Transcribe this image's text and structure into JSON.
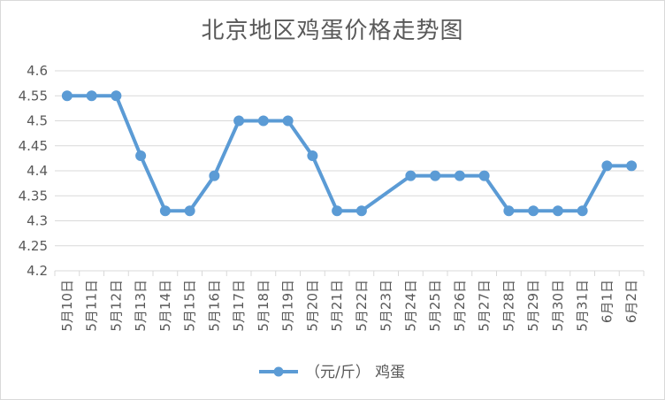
{
  "chart_data": {
    "type": "line",
    "title": "北京地区鸡蛋价格走势图",
    "categories": [
      "5月10日",
      "5月11日",
      "5月12日",
      "5月13日",
      "5月14日",
      "5月15日",
      "5月16日",
      "5月17日",
      "5月18日",
      "5月19日",
      "5月20日",
      "5月21日",
      "5月22日",
      "5月23日",
      "5月24日",
      "5月25日",
      "5月26日",
      "5月27日",
      "5月28日",
      "5月29日",
      "5月30日",
      "5月31日",
      "6月1日",
      "6月2日"
    ],
    "series": [
      {
        "name": "（元/斤） 鸡蛋",
        "color": "#5b9bd5",
        "values": [
          4.55,
          4.55,
          4.55,
          4.43,
          4.32,
          4.32,
          4.39,
          4.5,
          4.5,
          4.5,
          4.43,
          4.32,
          4.32,
          null,
          4.39,
          4.39,
          4.39,
          4.39,
          4.32,
          4.32,
          4.32,
          4.32,
          4.41,
          4.41
        ]
      }
    ],
    "yticks": [
      "4.2",
      "4.25",
      "4.3",
      "4.35",
      "4.4",
      "4.45",
      "4.5",
      "4.55",
      "4.6"
    ],
    "ylim": [
      4.2,
      4.6
    ],
    "grid": true,
    "legend": "bottom"
  }
}
